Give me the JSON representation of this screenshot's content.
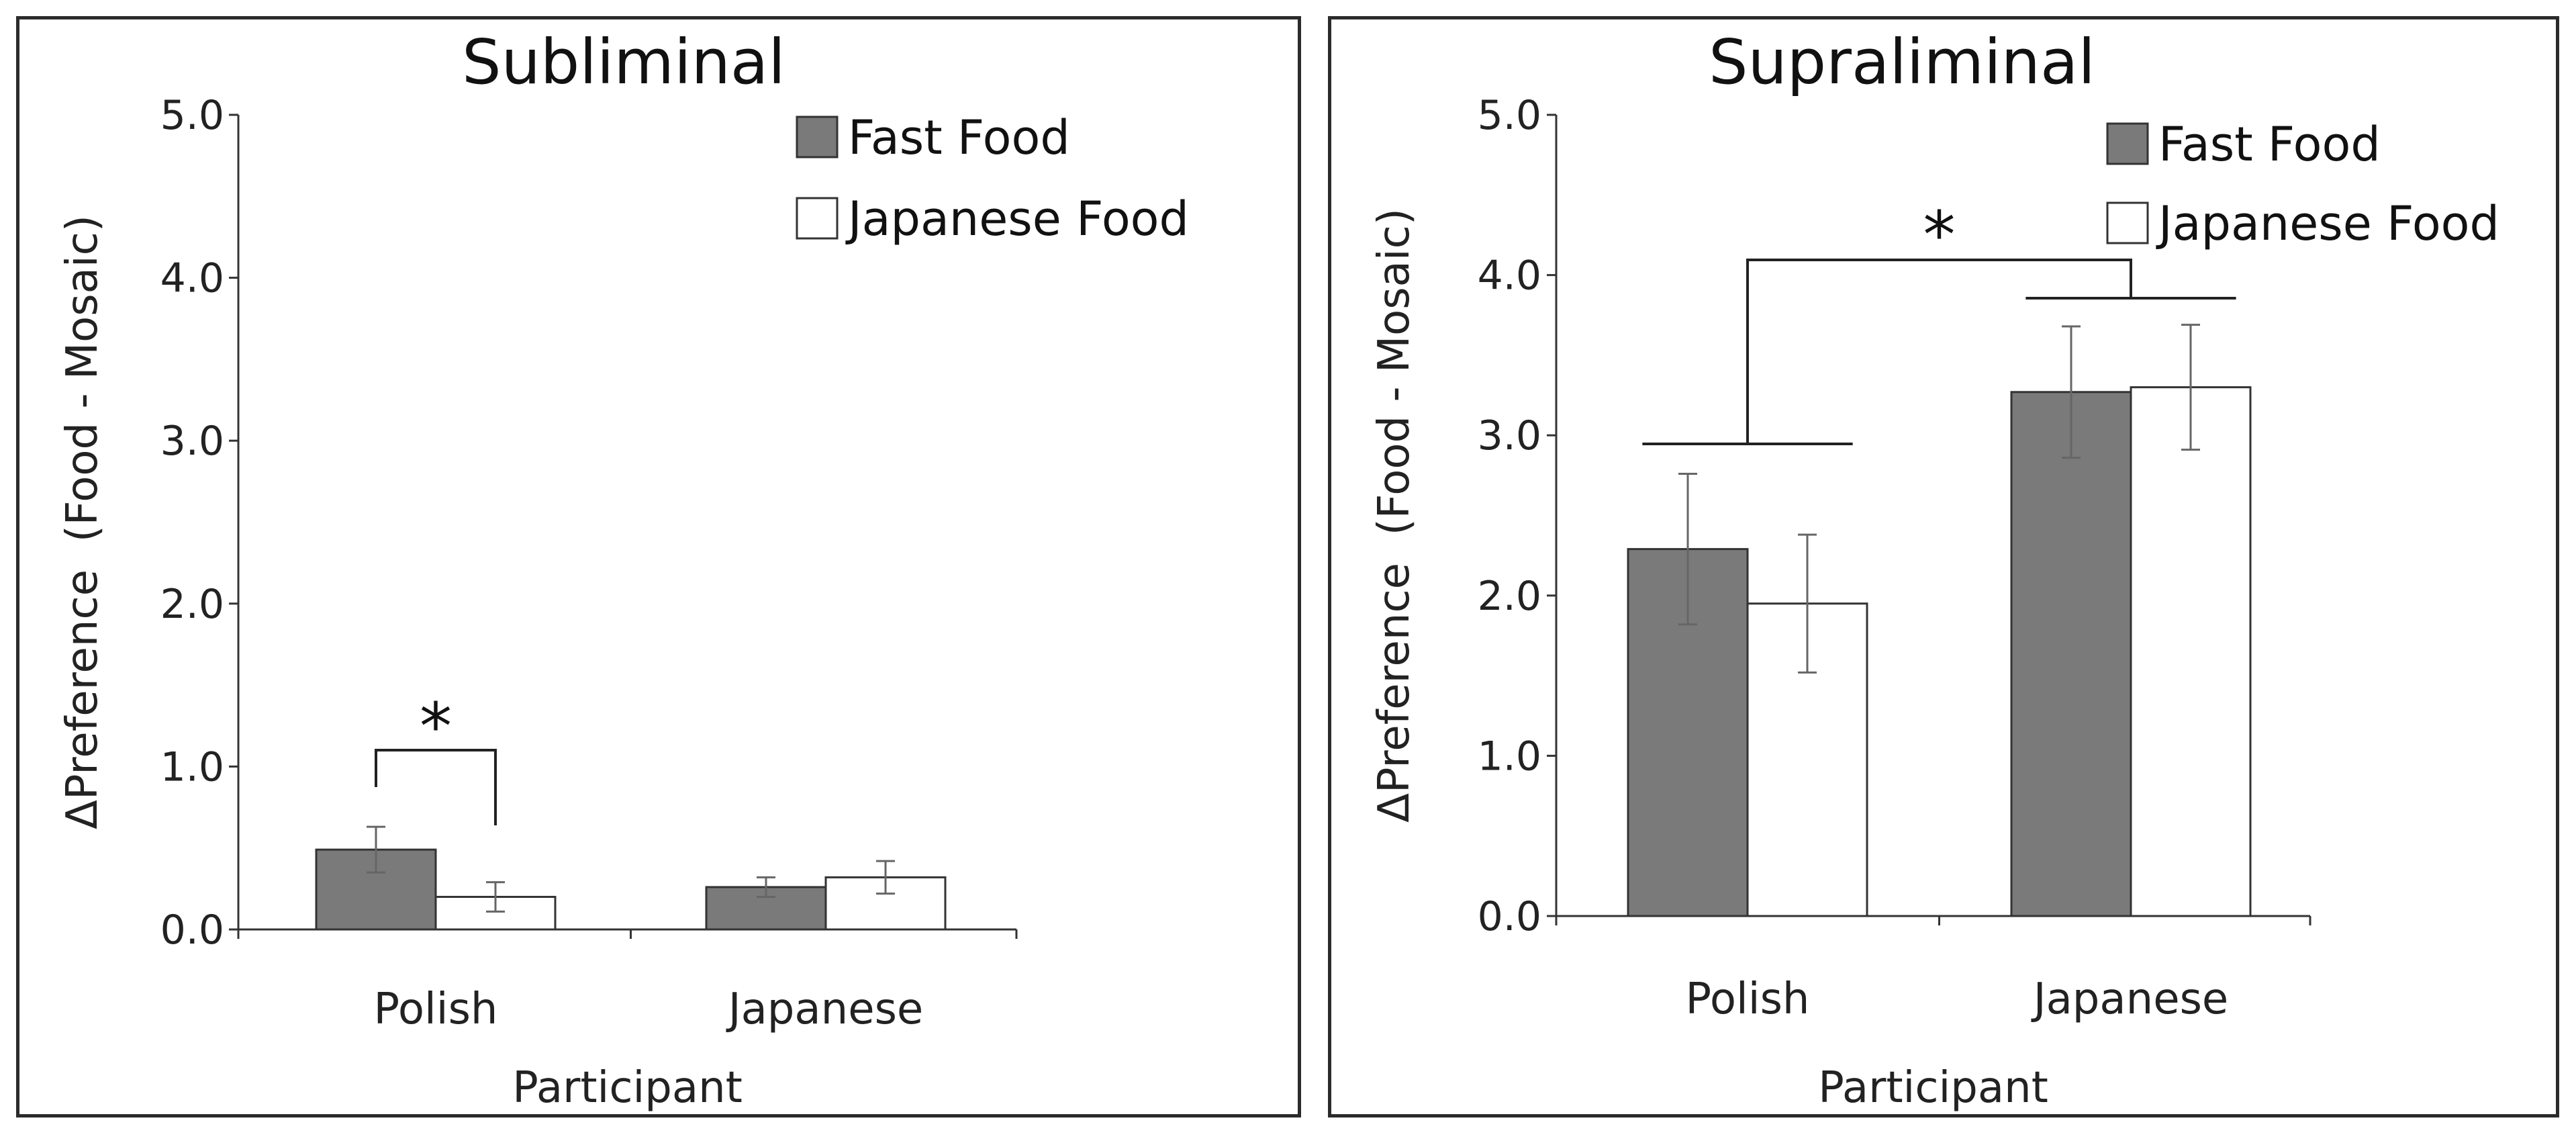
{
  "chart_data": [
    {
      "type": "bar",
      "title": "Subliminal",
      "xlabel": "Participant",
      "ylabel": "ΔPreference  (Food - Mosaic)",
      "ylim": [
        0,
        5
      ],
      "yticks": [
        "0.0",
        "1.0",
        "2.0",
        "3.0",
        "4.0",
        "5.0"
      ],
      "categories": [
        "Polish",
        "Japanese"
      ],
      "series": [
        {
          "name": "Fast Food",
          "color": "#7a7a7a",
          "values": [
            0.49,
            0.26
          ],
          "errors": [
            0.14,
            0.06
          ]
        },
        {
          "name": "Japanese Food",
          "color": "#ffffff",
          "values": [
            0.2,
            0.32
          ],
          "errors": [
            0.09,
            0.1
          ]
        }
      ],
      "annotations": [
        {
          "type": "bracket",
          "label": "*",
          "between": "Polish: Fast Food vs Japanese Food"
        }
      ]
    },
    {
      "type": "bar",
      "title": "Supraliminal",
      "xlabel": "Participant",
      "ylabel": "ΔPreference  (Food - Mosaic)",
      "ylim": [
        0,
        5
      ],
      "yticks": [
        "0.0",
        "1.0",
        "2.0",
        "3.0",
        "4.0",
        "5.0"
      ],
      "categories": [
        "Polish",
        "Japanese"
      ],
      "series": [
        {
          "name": "Fast Food",
          "color": "#7a7a7a",
          "values": [
            2.29,
            3.27
          ],
          "errors": [
            0.47,
            0.41
          ]
        },
        {
          "name": "Japanese Food",
          "color": "#ffffff",
          "values": [
            1.95,
            3.3
          ],
          "errors": [
            0.43,
            0.39
          ]
        }
      ],
      "annotations": [
        {
          "type": "bracket",
          "label": "*",
          "between": "Polish vs Japanese participants"
        }
      ]
    }
  ]
}
